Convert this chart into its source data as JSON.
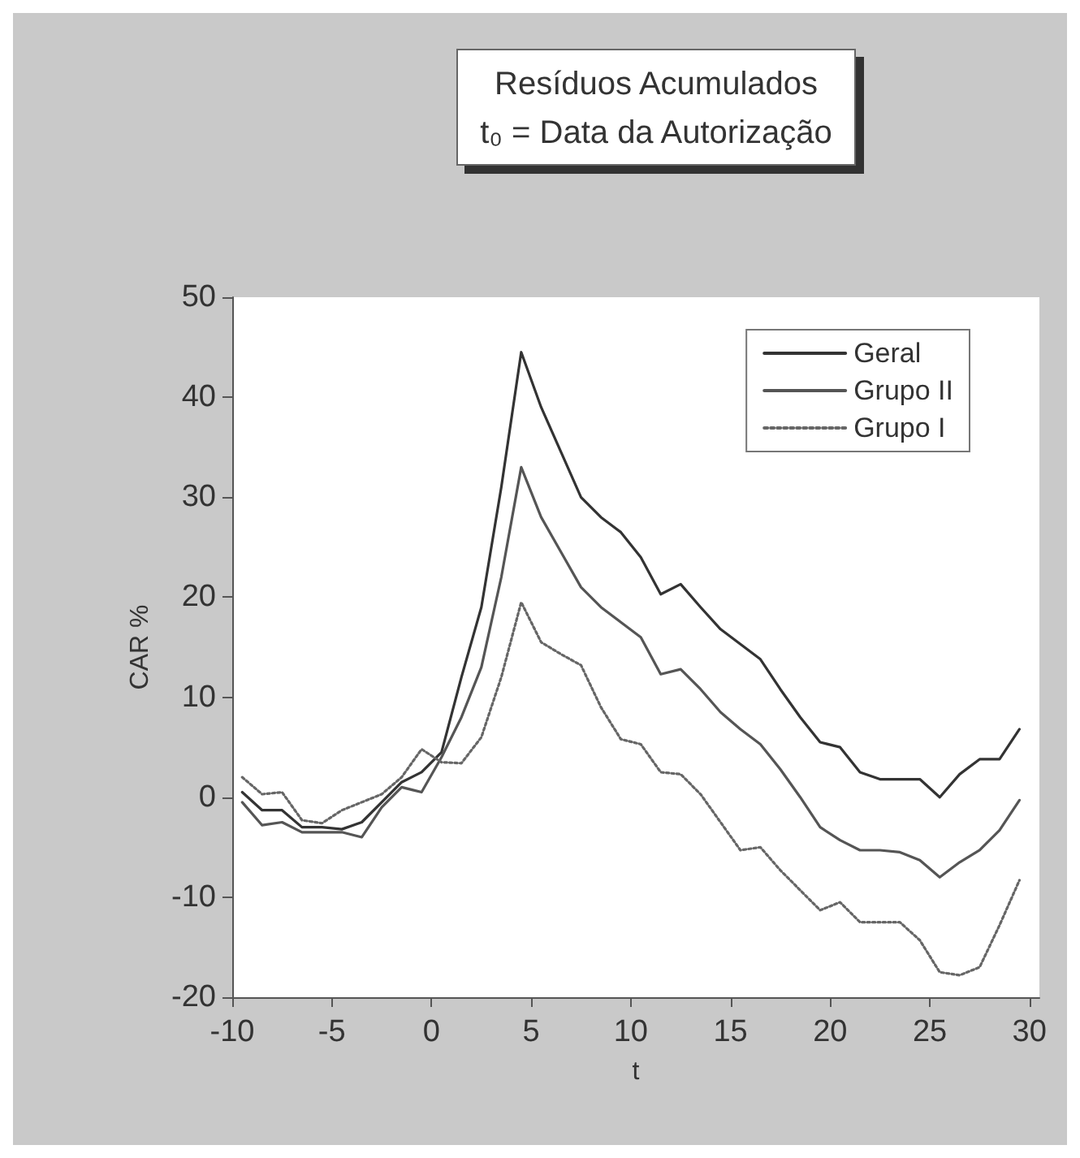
{
  "chart_data": {
    "type": "line",
    "title": "Resíduos Acumulados",
    "subtitle": "t₀ = Data da Autorização",
    "xlabel": "t",
    "ylabel": "CAR %",
    "x": [
      -9.5,
      -8.5,
      -7.5,
      -6.5,
      -5.5,
      -4.5,
      -3.5,
      -2.5,
      -1.5,
      -0.5,
      0.5,
      1.5,
      2.5,
      3.5,
      4.5,
      5.5,
      6.5,
      7.5,
      8.5,
      9.5,
      10.5,
      11.5,
      12.5,
      13.5,
      14.5,
      15.5,
      16.5,
      17.5,
      18.5,
      19.5,
      20.5,
      21.5,
      22.5,
      23.5,
      24.5,
      25.5,
      26.5,
      27.5,
      28.5,
      29.5
    ],
    "series": [
      {
        "name": "Geral",
        "color": "#333333",
        "line_style": "solid",
        "values": [
          0.5,
          -1.3,
          -1.3,
          -3,
          -3,
          -3.2,
          -2.5,
          -0.5,
          1.5,
          2.5,
          4.5,
          12,
          19,
          31,
          44.5,
          39,
          34.5,
          30,
          28,
          26.5,
          24,
          20.3,
          21.3,
          19,
          16.8,
          15.3,
          13.8,
          10.8,
          8,
          5.5,
          5,
          2.5,
          1.8,
          1.8,
          1.8,
          0,
          2.3,
          3.8,
          3.8,
          6.8
        ]
      },
      {
        "name": "Grupo II",
        "color": "#555555",
        "line_style": "solid",
        "values": [
          -0.5,
          -2.8,
          -2.5,
          -3.5,
          -3.5,
          -3.5,
          -4,
          -1,
          1,
          0.5,
          4,
          8,
          13,
          22,
          33,
          28,
          24.5,
          21,
          19,
          17.5,
          16,
          12.3,
          12.8,
          10.8,
          8.5,
          6.8,
          5.3,
          2.8,
          0,
          -3,
          -4.3,
          -5.3,
          -5.3,
          -5.5,
          -6.3,
          -8,
          -6.5,
          -5.3,
          -3.3,
          -0.3
        ]
      },
      {
        "name": "Grupo I",
        "color": "#666666",
        "line_style": "dotted",
        "values": [
          2,
          0.3,
          0.5,
          -2.3,
          -2.6,
          -1.3,
          -0.5,
          0.3,
          2,
          4.8,
          3.5,
          3.4,
          6,
          12,
          19.5,
          15.5,
          14.3,
          13.2,
          9,
          5.8,
          5.3,
          2.5,
          2.3,
          0.3,
          -2.5,
          -5.3,
          -5,
          -7.3,
          -9.3,
          -11.3,
          -10.5,
          -12.5,
          -12.5,
          -12.5,
          -14.3,
          -17.5,
          -17.8,
          -17,
          -12.8,
          -8.3
        ]
      }
    ],
    "xlim": [
      -10,
      30.5
    ],
    "xticks": [
      -10,
      -5,
      0,
      5,
      10,
      15,
      20,
      25,
      30
    ],
    "ylim": [
      -20,
      50
    ],
    "yticks": [
      -20,
      -10,
      0,
      10,
      20,
      30,
      40,
      50
    ],
    "grid": false,
    "legend": "top right",
    "marker": "none"
  }
}
